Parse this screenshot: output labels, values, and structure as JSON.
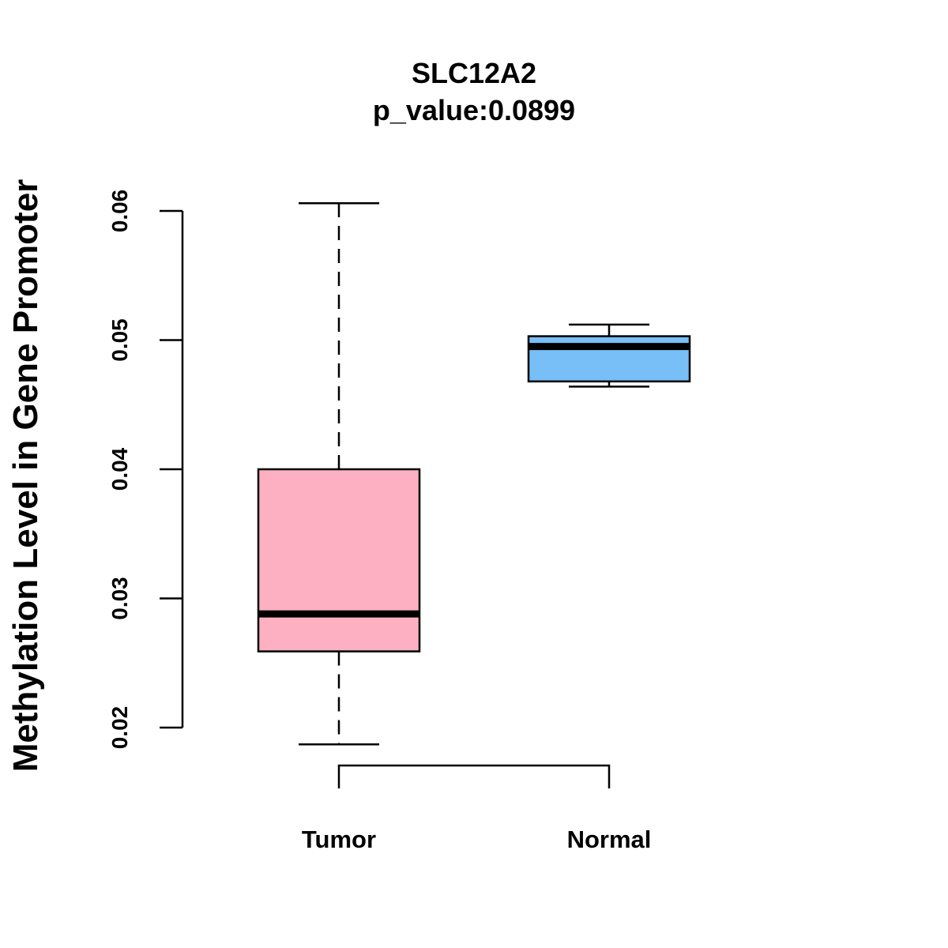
{
  "chart_data": {
    "type": "boxplot",
    "title": "SLC12A2",
    "subtitle": "p_value:0.0899",
    "xlabel": "",
    "ylabel": "Methylation Level in Gene Promoter",
    "ylim": [
      0.02,
      0.06
    ],
    "yticks": [
      0.02,
      0.03,
      0.04,
      0.05,
      0.06
    ],
    "ytick_labels": [
      "0.02",
      "0.03",
      "0.04",
      "0.05",
      "0.06"
    ],
    "categories": [
      "Tumor",
      "Normal"
    ],
    "boxes": [
      {
        "name": "Tumor",
        "whisker_low": 0.0187,
        "q1": 0.0259,
        "median": 0.0288,
        "q3": 0.04,
        "whisker_high": 0.0606,
        "color": "#FDB0C2"
      },
      {
        "name": "Normal",
        "whisker_low": 0.0464,
        "q1": 0.0468,
        "median": 0.0495,
        "q3": 0.0503,
        "whisker_high": 0.0512,
        "color": "#77BFF6"
      }
    ],
    "comparison_bracket": [
      "Tumor",
      "Normal"
    ],
    "grid": false,
    "legend": "none"
  }
}
